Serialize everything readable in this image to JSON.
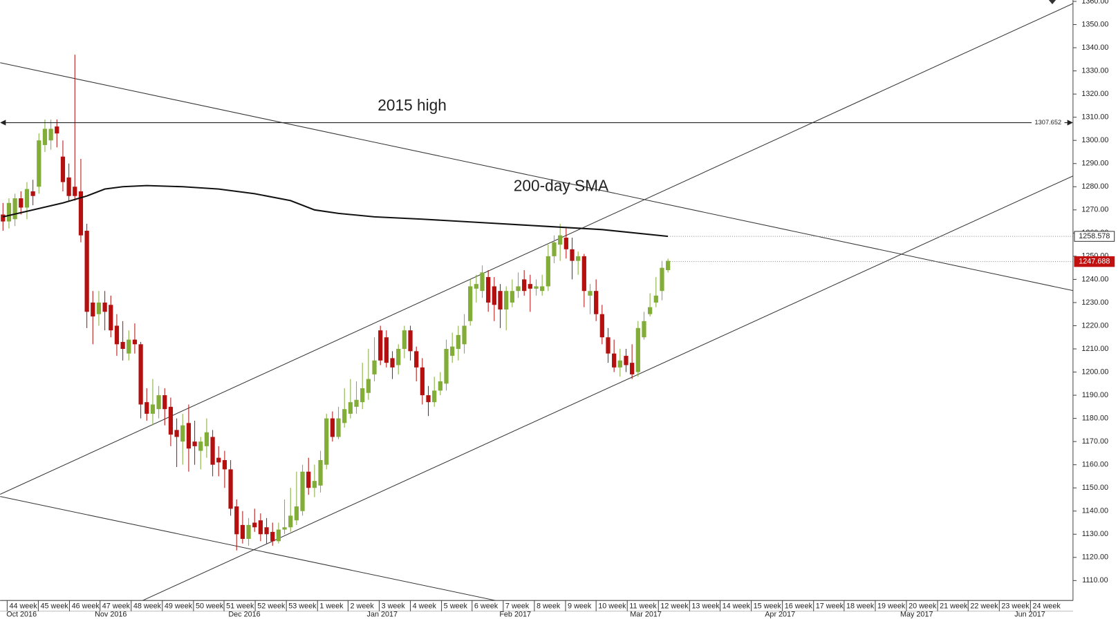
{
  "chart_data": {
    "type": "candlestick",
    "up_color": "#82ad38",
    "down_color": "#b3100f",
    "candles": [
      [
        1268,
        1273,
        1261,
        1265
      ],
      [
        1265,
        1275,
        1262,
        1273
      ],
      [
        1266,
        1277,
        1263,
        1275
      ],
      [
        1275,
        1278,
        1268,
        1271
      ],
      [
        1271,
        1282,
        1266,
        1279
      ],
      [
        1278,
        1283,
        1272,
        1276
      ],
      [
        1280,
        1303,
        1277,
        1300
      ],
      [
        1298,
        1309,
        1295,
        1305
      ],
      [
        1300,
        1309,
        1296,
        1305
      ],
      [
        1306,
        1309,
        1297,
        1303
      ],
      [
        1293,
        1300,
        1278,
        1282
      ],
      [
        1284,
        1290,
        1274,
        1276
      ],
      [
        1280,
        1337,
        1274,
        1276
      ],
      [
        1278,
        1292,
        1256,
        1259
      ],
      [
        1261,
        1264,
        1219,
        1226
      ],
      [
        1230,
        1235,
        1212,
        1224
      ],
      [
        1225,
        1235,
        1220,
        1230
      ],
      [
        1230,
        1235,
        1218,
        1226
      ],
      [
        1229,
        1233,
        1215,
        1218
      ],
      [
        1220,
        1225,
        1207,
        1212
      ],
      [
        1213,
        1222,
        1205,
        1210
      ],
      [
        1208,
        1218,
        1205,
        1214
      ],
      [
        1214,
        1221,
        1208,
        1212
      ],
      [
        1212,
        1213,
        1180,
        1186
      ],
      [
        1187,
        1193,
        1179,
        1182
      ],
      [
        1182,
        1197,
        1177,
        1186
      ],
      [
        1184,
        1194,
        1180,
        1190
      ],
      [
        1190,
        1193,
        1177,
        1184
      ],
      [
        1185,
        1189,
        1168,
        1173
      ],
      [
        1175,
        1180,
        1159,
        1172
      ],
      [
        1170,
        1182,
        1160,
        1177
      ],
      [
        1178,
        1186,
        1157,
        1167
      ],
      [
        1170,
        1179,
        1160,
        1168
      ],
      [
        1166,
        1172,
        1158,
        1170
      ],
      [
        1168,
        1180,
        1163,
        1174
      ],
      [
        1172,
        1175,
        1155,
        1160
      ],
      [
        1163,
        1168,
        1155,
        1161
      ],
      [
        1162,
        1166,
        1150,
        1158
      ],
      [
        1158,
        1162,
        1138,
        1141
      ],
      [
        1142,
        1145,
        1123,
        1130
      ],
      [
        1134,
        1140,
        1126,
        1128
      ],
      [
        1128,
        1137,
        1125,
        1134
      ],
      [
        1135,
        1141,
        1131,
        1133
      ],
      [
        1136,
        1139,
        1127,
        1130
      ],
      [
        1133,
        1137,
        1126,
        1130
      ],
      [
        1131,
        1135,
        1125,
        1127
      ],
      [
        1127,
        1135,
        1126,
        1132
      ],
      [
        1132,
        1145,
        1130,
        1133
      ],
      [
        1133,
        1150,
        1131,
        1138
      ],
      [
        1136,
        1157,
        1134,
        1142
      ],
      [
        1140,
        1160,
        1138,
        1157
      ],
      [
        1157,
        1163,
        1147,
        1150
      ],
      [
        1150,
        1160,
        1146,
        1153
      ],
      [
        1151,
        1166,
        1148,
        1162
      ],
      [
        1160,
        1182,
        1158,
        1180
      ],
      [
        1180,
        1183,
        1170,
        1172
      ],
      [
        1172,
        1185,
        1171,
        1180
      ],
      [
        1178,
        1193,
        1176,
        1184
      ],
      [
        1182,
        1197,
        1180,
        1187
      ],
      [
        1185,
        1196,
        1182,
        1188
      ],
      [
        1187,
        1204,
        1184,
        1193
      ],
      [
        1191,
        1210,
        1188,
        1197
      ],
      [
        1199,
        1215,
        1196,
        1205
      ],
      [
        1218,
        1220,
        1203,
        1205
      ],
      [
        1215,
        1218,
        1202,
        1204
      ],
      [
        1206,
        1209,
        1197,
        1202
      ],
      [
        1203,
        1212,
        1199,
        1210
      ],
      [
        1210,
        1220,
        1206,
        1218
      ],
      [
        1218,
        1220,
        1205,
        1209
      ],
      [
        1209,
        1211,
        1196,
        1202
      ],
      [
        1202,
        1206,
        1186,
        1190
      ],
      [
        1190,
        1194,
        1181,
        1187
      ],
      [
        1187,
        1198,
        1185,
        1192
      ],
      [
        1192,
        1200,
        1190,
        1196
      ],
      [
        1195,
        1214,
        1192,
        1210
      ],
      [
        1207,
        1217,
        1204,
        1211
      ],
      [
        1210,
        1220,
        1205,
        1216
      ],
      [
        1212,
        1225,
        1208,
        1220
      ],
      [
        1222,
        1240,
        1220,
        1237
      ],
      [
        1236,
        1242,
        1230,
        1238
      ],
      [
        1235,
        1246,
        1232,
        1243
      ],
      [
        1241,
        1244,
        1226,
        1230
      ],
      [
        1237,
        1241,
        1222,
        1229
      ],
      [
        1235,
        1238,
        1219,
        1227
      ],
      [
        1227,
        1237,
        1218,
        1235
      ],
      [
        1230,
        1240,
        1228,
        1235
      ],
      [
        1235,
        1243,
        1232,
        1237
      ],
      [
        1240,
        1244,
        1233,
        1235
      ],
      [
        1238,
        1242,
        1226,
        1236
      ],
      [
        1236,
        1240,
        1233,
        1237
      ],
      [
        1235,
        1242,
        1233,
        1237
      ],
      [
        1237,
        1255,
        1235,
        1250
      ],
      [
        1250,
        1259,
        1247,
        1256
      ],
      [
        1255,
        1264,
        1248,
        1259
      ],
      [
        1258,
        1262,
        1249,
        1253
      ],
      [
        1253,
        1258,
        1240,
        1248
      ],
      [
        1248,
        1252,
        1242,
        1250
      ],
      [
        1250,
        1251,
        1228,
        1235
      ],
      [
        1233,
        1238,
        1225,
        1235
      ],
      [
        1235,
        1240,
        1222,
        1225
      ],
      [
        1225,
        1229,
        1212,
        1215
      ],
      [
        1215,
        1219,
        1204,
        1208
      ],
      [
        1208,
        1214,
        1200,
        1202
      ],
      [
        1202,
        1210,
        1198,
        1205
      ],
      [
        1207,
        1210,
        1200,
        1203
      ],
      [
        1204,
        1212,
        1197,
        1199
      ],
      [
        1200,
        1222,
        1198,
        1219
      ],
      [
        1215,
        1226,
        1214,
        1222
      ],
      [
        1225,
        1234,
        1224,
        1228
      ],
      [
        1230,
        1241,
        1228,
        1233
      ],
      [
        1235,
        1248,
        1231,
        1245
      ],
      [
        1244,
        1249,
        1243,
        1248
      ]
    ],
    "sma": {
      "label": "200-day SMA",
      "color": "#111",
      "x": [
        0,
        10,
        14,
        17,
        20,
        24,
        30,
        36,
        42,
        48,
        52,
        56,
        62,
        70,
        80,
        90,
        100,
        111
      ],
      "values": [
        1267,
        1273,
        1276,
        1279,
        1280,
        1280.5,
        1280,
        1279,
        1277,
        1274,
        1270,
        1268.5,
        1267,
        1266,
        1264.5,
        1263,
        1261.5,
        1258.578
      ]
    },
    "high_line": {
      "label": "2015 high",
      "value": 1307.652
    },
    "price_markers": [
      {
        "value": 1258.578,
        "color": "#ffffff"
      },
      {
        "value": 1247.688,
        "color": "#c0100f"
      }
    ],
    "xlim": [
      -0.48,
      178.6
    ],
    "ylim": [
      1101.4,
      1360.6
    ],
    "yticks": [
      {
        "value": 1110,
        "label": "1110.00"
      },
      {
        "value": 1120,
        "label": "1120.00"
      },
      {
        "value": 1130,
        "label": "1130.00"
      },
      {
        "value": 1140,
        "label": "1140.00"
      },
      {
        "value": 1150,
        "label": "1150.00"
      },
      {
        "value": 1160,
        "label": "1160.00"
      },
      {
        "value": 1170,
        "label": "1170.00"
      },
      {
        "value": 1180,
        "label": "1180.00"
      },
      {
        "value": 1190,
        "label": "1190.00"
      },
      {
        "value": 1200,
        "label": "1200.00"
      },
      {
        "value": 1210,
        "label": "1210.00"
      },
      {
        "value": 1220,
        "label": "1220.00"
      },
      {
        "value": 1230,
        "label": "1230.00"
      },
      {
        "value": 1240,
        "label": "1240.00"
      },
      {
        "value": 1250,
        "label": "1250.00"
      },
      {
        "value": 1260,
        "label": "1260.00"
      },
      {
        "value": 1270,
        "label": "1270.00"
      },
      {
        "value": 1280,
        "label": "1280.00"
      },
      {
        "value": 1290,
        "label": "1290.00"
      },
      {
        "value": 1300,
        "label": "1300.00"
      },
      {
        "value": 1310,
        "label": "1310.00"
      },
      {
        "value": 1320,
        "label": "1320.00"
      },
      {
        "value": 1330,
        "label": "1330.00"
      },
      {
        "value": 1340,
        "label": "1340.00"
      },
      {
        "value": 1350,
        "label": "1350.00"
      },
      {
        "value": 1360,
        "label": "1360.00"
      }
    ],
    "xticks": [
      {
        "value": 0.7,
        "label": "44 week"
      },
      {
        "value": 5.9,
        "label": "45 week"
      },
      {
        "value": 11.1,
        "label": "46 week"
      },
      {
        "value": 16.2,
        "label": "47 week"
      },
      {
        "value": 21.4,
        "label": "48 week"
      },
      {
        "value": 26.6,
        "label": "49 week"
      },
      {
        "value": 31.8,
        "label": "50 week"
      },
      {
        "value": 36.9,
        "label": "51 week"
      },
      {
        "value": 42.1,
        "label": "52 week"
      },
      {
        "value": 47.3,
        "label": "53 week"
      },
      {
        "value": 52.5,
        "label": "1 week"
      },
      {
        "value": 57.6,
        "label": "2 week"
      },
      {
        "value": 62.8,
        "label": "3 week"
      },
      {
        "value": 68.0,
        "label": "4 week"
      },
      {
        "value": 73.2,
        "label": "5 week"
      },
      {
        "value": 78.3,
        "label": "6 week"
      },
      {
        "value": 83.5,
        "label": "7 week"
      },
      {
        "value": 88.7,
        "label": "8 week"
      },
      {
        "value": 93.9,
        "label": "9 week"
      },
      {
        "value": 99.0,
        "label": "10 week"
      },
      {
        "value": 104.2,
        "label": "11 week"
      },
      {
        "value": 109.4,
        "label": "12 week"
      },
      {
        "value": 114.6,
        "label": "13 week"
      },
      {
        "value": 119.7,
        "label": "14 week"
      },
      {
        "value": 124.9,
        "label": "15 week"
      },
      {
        "value": 130.1,
        "label": "16 week"
      },
      {
        "value": 135.3,
        "label": "17 week"
      },
      {
        "value": 140.4,
        "label": "18 week"
      },
      {
        "value": 145.6,
        "label": "19 week"
      },
      {
        "value": 150.8,
        "label": "20 week"
      },
      {
        "value": 156.0,
        "label": "21 week"
      },
      {
        "value": 161.1,
        "label": "22 week"
      },
      {
        "value": 166.3,
        "label": "23 week"
      },
      {
        "value": 171.5,
        "label": "24 week"
      }
    ],
    "month_ticks": [
      {
        "value": 3.1,
        "label": "Oct 2016"
      },
      {
        "value": 18.0,
        "label": "Nov 2016"
      },
      {
        "value": 40.3,
        "label": "Dec 2016"
      },
      {
        "value": 63.3,
        "label": "Jan 2017"
      },
      {
        "value": 85.5,
        "label": "Feb 2017"
      },
      {
        "value": 107.3,
        "label": "Mar 2017"
      },
      {
        "value": 129.7,
        "label": "Apr 2017"
      },
      {
        "value": 152.5,
        "label": "May 2017"
      },
      {
        "value": 171.4,
        "label": "Jun 2017"
      }
    ]
  }
}
